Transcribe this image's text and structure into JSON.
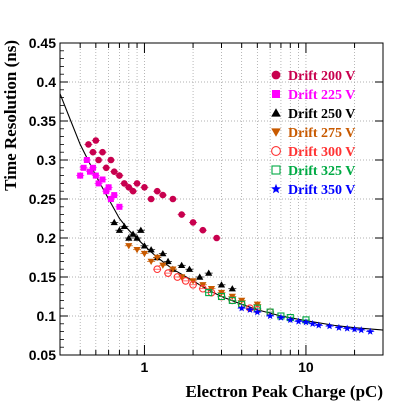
{
  "chart_data": {
    "type": "scatter",
    "title": "",
    "xlabel": "Electron Peak Charge (pC)",
    "ylabel": "Time Resolution (ns)",
    "xscale": "log",
    "xlim": [
      0.3,
      30
    ],
    "ylim": [
      0.05,
      0.45
    ],
    "grid": true,
    "legend_position": "top-right",
    "x_ticks": [
      {
        "value": 1,
        "label": "1"
      },
      {
        "value": 10,
        "label": "10"
      }
    ],
    "y_ticks": [
      {
        "value": 0.05,
        "label": "0.05"
      },
      {
        "value": 0.1,
        "label": "0.1"
      },
      {
        "value": 0.15,
        "label": "0.15"
      },
      {
        "value": 0.2,
        "label": "0.2"
      },
      {
        "value": 0.25,
        "label": "0.25"
      },
      {
        "value": 0.3,
        "label": "0.3"
      },
      {
        "value": 0.35,
        "label": "0.35"
      },
      {
        "value": 0.4,
        "label": "0.4"
      },
      {
        "value": 0.45,
        "label": "0.45"
      }
    ],
    "series": [
      {
        "name": "Drift 200 V",
        "color": "#c8004e",
        "marker": "circle",
        "points": [
          [
            0.45,
            0.32
          ],
          [
            0.48,
            0.31
          ],
          [
            0.5,
            0.325
          ],
          [
            0.52,
            0.3
          ],
          [
            0.55,
            0.31
          ],
          [
            0.58,
            0.29
          ],
          [
            0.62,
            0.3
          ],
          [
            0.65,
            0.285
          ],
          [
            0.7,
            0.28
          ],
          [
            0.75,
            0.27
          ],
          [
            0.8,
            0.265
          ],
          [
            0.85,
            0.26
          ],
          [
            0.9,
            0.27
          ],
          [
            1.0,
            0.265
          ],
          [
            1.1,
            0.25
          ],
          [
            1.2,
            0.26
          ],
          [
            1.3,
            0.255
          ],
          [
            1.5,
            0.25
          ],
          [
            1.7,
            0.23
          ],
          [
            2.0,
            0.22
          ],
          [
            2.3,
            0.21
          ],
          [
            2.8,
            0.2
          ]
        ]
      },
      {
        "name": "Drift 225 V",
        "color": "#ff00ff",
        "marker": "square",
        "points": [
          [
            0.4,
            0.28
          ],
          [
            0.42,
            0.29
          ],
          [
            0.44,
            0.3
          ],
          [
            0.46,
            0.285
          ],
          [
            0.48,
            0.29
          ],
          [
            0.5,
            0.28
          ],
          [
            0.52,
            0.27
          ],
          [
            0.55,
            0.275
          ],
          [
            0.58,
            0.26
          ],
          [
            0.6,
            0.265
          ],
          [
            0.62,
            0.25
          ],
          [
            0.65,
            0.255
          ],
          [
            0.7,
            0.24
          ]
        ]
      },
      {
        "name": "Drift 250 V",
        "color": "#000000",
        "marker": "triangle-up",
        "points": [
          [
            0.65,
            0.22
          ],
          [
            0.7,
            0.21
          ],
          [
            0.75,
            0.215
          ],
          [
            0.8,
            0.2
          ],
          [
            0.85,
            0.205
          ],
          [
            0.9,
            0.2
          ],
          [
            0.95,
            0.21
          ],
          [
            1.0,
            0.19
          ],
          [
            1.1,
            0.185
          ],
          [
            1.2,
            0.175
          ],
          [
            1.3,
            0.18
          ],
          [
            1.4,
            0.17
          ],
          [
            1.5,
            0.16
          ],
          [
            1.7,
            0.165
          ],
          [
            1.9,
            0.16
          ],
          [
            2.2,
            0.15
          ],
          [
            2.5,
            0.155
          ],
          [
            3.0,
            0.14
          ],
          [
            3.5,
            0.135
          ]
        ]
      },
      {
        "name": "Drift 275 V",
        "color": "#c85a00",
        "marker": "triangle-down",
        "points": [
          [
            0.8,
            0.19
          ],
          [
            0.9,
            0.185
          ],
          [
            1.0,
            0.18
          ],
          [
            1.1,
            0.17
          ],
          [
            1.2,
            0.175
          ],
          [
            1.3,
            0.165
          ],
          [
            1.5,
            0.16
          ],
          [
            1.7,
            0.15
          ],
          [
            2.0,
            0.145
          ],
          [
            2.3,
            0.14
          ],
          [
            2.6,
            0.135
          ],
          [
            3.0,
            0.13
          ],
          [
            3.5,
            0.125
          ],
          [
            4.0,
            0.12
          ],
          [
            5.0,
            0.115
          ]
        ]
      },
      {
        "name": "Drift 300 V",
        "color": "#ff3333",
        "marker": "circle-open",
        "points": [
          [
            1.2,
            0.16
          ],
          [
            1.4,
            0.155
          ],
          [
            1.6,
            0.15
          ],
          [
            1.8,
            0.145
          ],
          [
            2.0,
            0.14
          ],
          [
            2.3,
            0.135
          ],
          [
            2.6,
            0.13
          ],
          [
            3.0,
            0.125
          ],
          [
            3.5,
            0.12
          ],
          [
            4.0,
            0.115
          ],
          [
            4.5,
            0.11
          ],
          [
            5.0,
            0.108
          ],
          [
            6.0,
            0.105
          ]
        ]
      },
      {
        "name": "Drift 325 V",
        "color": "#00aa44",
        "marker": "square-open",
        "points": [
          [
            2.5,
            0.13
          ],
          [
            3.0,
            0.125
          ],
          [
            3.5,
            0.12
          ],
          [
            4.0,
            0.115
          ],
          [
            5.0,
            0.11
          ],
          [
            6.0,
            0.105
          ],
          [
            7.0,
            0.1
          ],
          [
            8.0,
            0.098
          ],
          [
            10.0,
            0.095
          ]
        ]
      },
      {
        "name": "Drift 350 V",
        "color": "#0000ff",
        "marker": "star",
        "points": [
          [
            4.0,
            0.11
          ],
          [
            4.5,
            0.108
          ],
          [
            5.0,
            0.105
          ],
          [
            6.0,
            0.1
          ],
          [
            7.0,
            0.098
          ],
          [
            8.0,
            0.095
          ],
          [
            9.0,
            0.093
          ],
          [
            10.0,
            0.092
          ],
          [
            11.0,
            0.09
          ],
          [
            12.0,
            0.088
          ],
          [
            14.0,
            0.087
          ],
          [
            16.0,
            0.085
          ],
          [
            18.0,
            0.084
          ],
          [
            20.0,
            0.083
          ],
          [
            22.0,
            0.082
          ],
          [
            25.0,
            0.08
          ]
        ]
      }
    ],
    "fit_curve": {
      "color": "#000000",
      "points": [
        [
          0.3,
          0.385
        ],
        [
          0.35,
          0.35
        ],
        [
          0.4,
          0.32
        ],
        [
          0.5,
          0.28
        ],
        [
          0.6,
          0.25
        ],
        [
          0.7,
          0.225
        ],
        [
          0.8,
          0.21
        ],
        [
          1.0,
          0.19
        ],
        [
          1.2,
          0.175
        ],
        [
          1.5,
          0.16
        ],
        [
          2.0,
          0.145
        ],
        [
          2.5,
          0.133
        ],
        [
          3.0,
          0.125
        ],
        [
          4.0,
          0.115
        ],
        [
          5.0,
          0.108
        ],
        [
          7.0,
          0.1
        ],
        [
          10.0,
          0.094
        ],
        [
          15.0,
          0.088
        ],
        [
          20.0,
          0.085
        ],
        [
          30.0,
          0.082
        ]
      ]
    }
  }
}
